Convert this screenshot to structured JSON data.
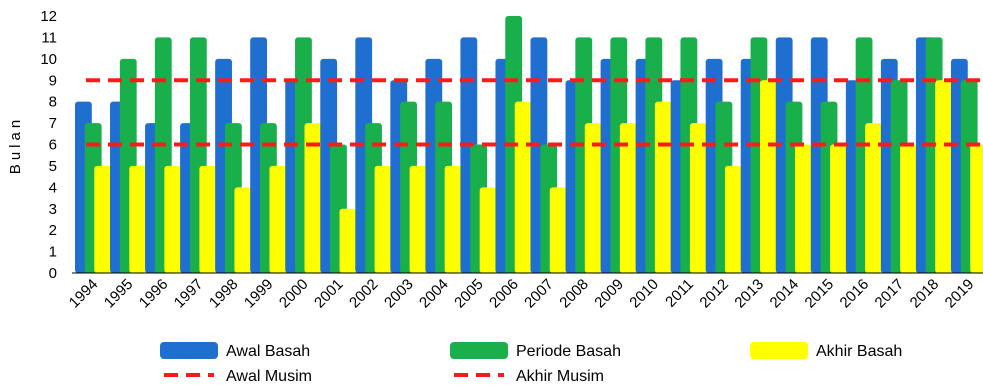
{
  "chart_data": {
    "type": "bar",
    "ylabel": "Bulan",
    "ylim": [
      0,
      12
    ],
    "yticks": [
      0,
      1,
      2,
      3,
      4,
      5,
      6,
      7,
      8,
      9,
      10,
      11,
      12
    ],
    "categories": [
      "1994",
      "1995",
      "1996",
      "1997",
      "1998",
      "1999",
      "2000",
      "2001",
      "2002",
      "2003",
      "2004",
      "2005",
      "2006",
      "2007",
      "2008",
      "2009",
      "2010",
      "2011",
      "2012",
      "2013",
      "2014",
      "2015",
      "2016",
      "2017",
      "2018",
      "2019"
    ],
    "series": [
      {
        "name": "Awal Basah",
        "color": "#1f6fd1",
        "values": [
          8,
          8,
          7,
          7,
          10,
          11,
          9,
          10,
          11,
          9,
          10,
          11,
          10,
          11,
          9,
          10,
          10,
          9,
          10,
          10,
          11,
          11,
          9,
          10,
          11,
          10
        ]
      },
      {
        "name": "Periode Basah",
        "color": "#19b04b",
        "values": [
          7,
          10,
          11,
          11,
          7,
          7,
          11,
          6,
          7,
          8,
          8,
          6,
          12,
          6,
          11,
          11,
          11,
          11,
          8,
          11,
          8,
          8,
          11,
          9,
          11,
          9
        ]
      },
      {
        "name": "Akhir Basah",
        "color": "#ffff00",
        "values": [
          5,
          5,
          5,
          5,
          4,
          5,
          7,
          3,
          5,
          5,
          5,
          4,
          8,
          4,
          7,
          7,
          8,
          7,
          5,
          9,
          6,
          6,
          7,
          6,
          9,
          6
        ]
      }
    ],
    "lines": [
      {
        "name": "Awal Musim",
        "color": "#ff1a1a",
        "value": 9
      },
      {
        "name": "Akhir Musim",
        "color": "#ff1a1a",
        "value": 6
      }
    ],
    "legend": [
      "Awal Basah",
      "Periode Basah",
      "Akhir Basah",
      "Awal Musim",
      "Akhir Musim"
    ],
    "legend_position": "bottom"
  }
}
